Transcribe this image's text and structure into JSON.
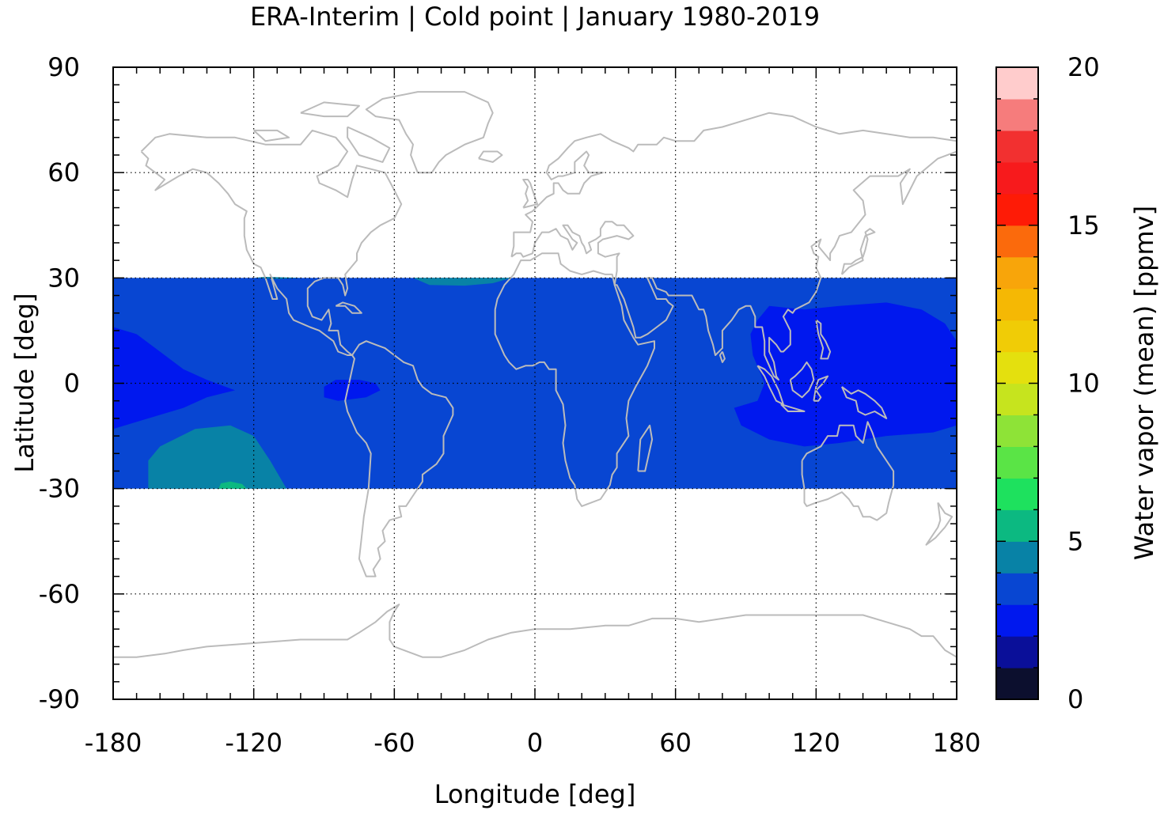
{
  "chart_data": {
    "type": "heatmap",
    "title": "ERA-Interim | Cold point | January 1980-2019",
    "xlabel": "Longitude [deg]",
    "ylabel": "Latitude [deg]",
    "colorbar_label": "Water vapor (mean) [ppmv]",
    "xlim": [
      -180,
      180
    ],
    "ylim": [
      -90,
      90
    ],
    "xticks": [
      -180,
      -120,
      -60,
      0,
      60,
      120,
      180
    ],
    "yticks": [
      -90,
      -60,
      -30,
      0,
      30,
      60,
      90
    ],
    "grid": true,
    "data_lat_range": [
      -30,
      30
    ],
    "colorbar": {
      "min": 0,
      "max": 20,
      "ticks": [
        0,
        5,
        10,
        15,
        20
      ],
      "levels": [
        0,
        1,
        2,
        3,
        4,
        5,
        6,
        7,
        8,
        9,
        10,
        11,
        12,
        13,
        14,
        15,
        16,
        17,
        18,
        19,
        20
      ],
      "colors": [
        "#0c0f2e",
        "#0a0f99",
        "#0018ee",
        "#0846d2",
        "#0882a6",
        "#0cb981",
        "#1ee15e",
        "#5ae446",
        "#8ee337",
        "#c6e41e",
        "#e4e00e",
        "#f0cc06",
        "#f5b804",
        "#f8a50a",
        "#fb6a0c",
        "#fe1b06",
        "#f71a1c",
        "#f23030",
        "#f67c7c",
        "#ffcccc"
      ]
    },
    "field": {
      "background_value": 3.5,
      "regions": [
        {
          "name": "western-pacific-minimum",
          "value": 2.5,
          "polygon": [
            [
              100,
              22
            ],
            [
              115,
              21
            ],
            [
              130,
              22
            ],
            [
              150,
              23
            ],
            [
              165,
              21
            ],
            [
              175,
              17
            ],
            [
              180,
              12
            ],
            [
              180,
              -12
            ],
            [
              170,
              -14
            ],
            [
              150,
              -15
            ],
            [
              130,
              -17
            ],
            [
              115,
              -18
            ],
            [
              100,
              -16
            ],
            [
              88,
              -12
            ],
            [
              85,
              -7
            ],
            [
              95,
              -5
            ],
            [
              98,
              0
            ],
            [
              93,
              8
            ],
            [
              92,
              14
            ],
            [
              95,
              18
            ]
          ]
        },
        {
          "name": "eastern-pacific-minimum",
          "value": 2.5,
          "polygon": [
            [
              -180,
              16
            ],
            [
              -170,
              14
            ],
            [
              -160,
              9
            ],
            [
              -150,
              4
            ],
            [
              -140,
              1
            ],
            [
              -128,
              -2
            ],
            [
              -140,
              -4
            ],
            [
              -150,
              -7
            ],
            [
              -165,
              -10
            ],
            [
              -180,
              -13
            ]
          ]
        },
        {
          "name": "amazon-minimum",
          "value": 2.5,
          "polygon": [
            [
              -90,
              -1
            ],
            [
              -85,
              1
            ],
            [
              -75,
              1
            ],
            [
              -68,
              0
            ],
            [
              -66,
              -2
            ],
            [
              -72,
              -4
            ],
            [
              -84,
              -5
            ],
            [
              -90,
              -4
            ]
          ]
        },
        {
          "name": "south-pacific-high",
          "value": 4.5,
          "polygon": [
            [
              -165,
              -30
            ],
            [
              -165,
              -22
            ],
            [
              -160,
              -18
            ],
            [
              -145,
              -13
            ],
            [
              -130,
              -12
            ],
            [
              -120,
              -15
            ],
            [
              -113,
              -22
            ],
            [
              -106,
              -30
            ]
          ]
        },
        {
          "name": "south-pacific-peak",
          "value": 5.5,
          "polygon": [
            [
              -135,
              -30
            ],
            [
              -134,
              -28.5
            ],
            [
              -130,
              -28
            ],
            [
              -125,
              -28.7
            ],
            [
              -123,
              -30
            ]
          ]
        },
        {
          "name": "north-atlantic-high",
          "value": 4.5,
          "polygon": [
            [
              -120,
              30
            ],
            [
              -110,
              29.7
            ],
            [
              -100,
              30
            ],
            [
              -115,
              30.3
            ]
          ]
        },
        {
          "name": "north-africa-high",
          "value": 4.5,
          "polygon": [
            [
              -52,
              30
            ],
            [
              -45,
              28
            ],
            [
              -30,
              27.8
            ],
            [
              -18,
              28.5
            ],
            [
              -10,
              30
            ]
          ]
        }
      ]
    }
  }
}
